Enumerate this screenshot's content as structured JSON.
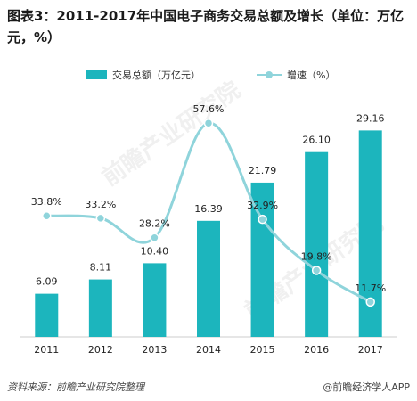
{
  "title": "图表3：2011-2017年中国电子商务交易总额及增长（单位：万亿元，%）",
  "legend": {
    "bar_label": "交易总额（万亿元）",
    "line_label": "增速（%）"
  },
  "source_text": "资料来源：前瞻产业研究院整理",
  "brand_text": "@前瞻经济学人APP",
  "watermark_text": "前瞻产业研究院",
  "colors": {
    "bar": "#1cb5bd",
    "line": "#8fd4db",
    "point": "#8fd4db"
  },
  "chart_data": {
    "type": "bar+line",
    "title": "图表3：2011-2017年中国电子商务交易总额及增长（单位：万亿元，%）",
    "categories": [
      "2011",
      "2012",
      "2013",
      "2014",
      "2015",
      "2016",
      "2017"
    ],
    "series": [
      {
        "name": "交易总额（万亿元）",
        "type": "bar",
        "values": [
          6.09,
          8.11,
          10.4,
          16.39,
          21.79,
          26.1,
          29.16
        ],
        "labels": [
          "6.09",
          "8.11",
          "10.40",
          "16.39",
          "21.79",
          "26.10",
          "29.16"
        ]
      },
      {
        "name": "增速（%）",
        "type": "line",
        "values": [
          33.8,
          33.2,
          28.2,
          57.6,
          32.9,
          19.8,
          11.7
        ],
        "labels": [
          "33.8%",
          "33.2%",
          "28.2%",
          "57.6%",
          "32.9%",
          "19.8%",
          "11.7%"
        ]
      }
    ],
    "legend_position": "top-center",
    "grid": false
  }
}
